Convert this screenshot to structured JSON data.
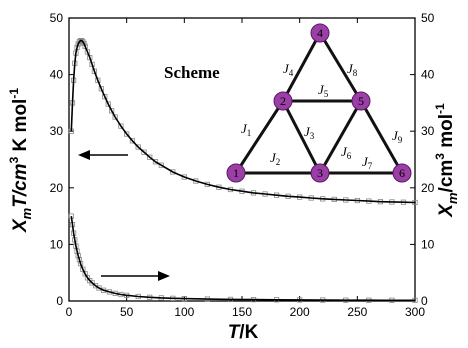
{
  "colors": {
    "node_fill": "#9b3fa6",
    "node_stroke": "#5a1a63",
    "fit_line": "#000000",
    "marker_stroke": "#888888"
  },
  "chart_data": {
    "type": "scatter",
    "x_axis": {
      "label_var": "T",
      "label_unit": "/K",
      "range": [
        0,
        300
      ],
      "ticks": [
        "0",
        "50",
        "100",
        "150",
        "200",
        "250",
        "300"
      ]
    },
    "y_axis_left": {
      "label_var": "X",
      "label_sub": "m",
      "label_rest": "T/cm",
      "label_sup": "3",
      "label_tail": " K mol",
      "label_sup2": "-1",
      "range": [
        0,
        50
      ],
      "ticks": [
        "0",
        "10",
        "20",
        "30",
        "40",
        "50"
      ]
    },
    "y_axis_right": {
      "label_var": "X",
      "label_sub": "m",
      "label_rest": "/cm",
      "label_sup": "3",
      "label_tail": " mol",
      "label_sup2": "-1",
      "range": [
        0,
        50
      ],
      "ticks": [
        "0",
        "10",
        "20",
        "30",
        "40",
        "50"
      ]
    },
    "series": [
      {
        "axis": "left",
        "points": [
          [
            2,
            30
          ],
          [
            3,
            35
          ],
          [
            4,
            39
          ],
          [
            5,
            42
          ],
          [
            6,
            43.8
          ],
          [
            7,
            44.8
          ],
          [
            8,
            45.4
          ],
          [
            9,
            45.8
          ],
          [
            10,
            46
          ],
          [
            11,
            46
          ],
          [
            12,
            45.8
          ],
          [
            13,
            45.5
          ],
          [
            14,
            45
          ],
          [
            16,
            44
          ],
          [
            18,
            43
          ],
          [
            20,
            41.8
          ],
          [
            22,
            40.6
          ],
          [
            25,
            39
          ],
          [
            28,
            37.5
          ],
          [
            31,
            36.1
          ],
          [
            34,
            34.8
          ],
          [
            37,
            33.6
          ],
          [
            40,
            32.5
          ],
          [
            45,
            30.9
          ],
          [
            50,
            29.5
          ],
          [
            55,
            28.3
          ],
          [
            60,
            27.2
          ],
          [
            65,
            26.3
          ],
          [
            70,
            25.4
          ],
          [
            75,
            24.6
          ],
          [
            80,
            24
          ],
          [
            90,
            22.8
          ],
          [
            100,
            21.9
          ],
          [
            110,
            21.2
          ],
          [
            120,
            20.6
          ],
          [
            130,
            20.1
          ],
          [
            140,
            19.7
          ],
          [
            150,
            19.4
          ],
          [
            160,
            19.1
          ],
          [
            170,
            18.9
          ],
          [
            180,
            18.7
          ],
          [
            190,
            18.5
          ],
          [
            200,
            18.35
          ],
          [
            210,
            18.2
          ],
          [
            220,
            18.05
          ],
          [
            230,
            17.95
          ],
          [
            240,
            17.85
          ],
          [
            250,
            17.75
          ],
          [
            260,
            17.65
          ],
          [
            270,
            17.55
          ],
          [
            280,
            17.5
          ],
          [
            290,
            17.45
          ],
          [
            300,
            17.4
          ]
        ]
      },
      {
        "axis": "right",
        "points": [
          [
            2,
            15
          ],
          [
            3,
            13.5
          ],
          [
            4,
            12
          ],
          [
            5,
            10.8
          ],
          [
            6,
            9.7
          ],
          [
            7,
            8.8
          ],
          [
            8,
            8
          ],
          [
            9,
            7.3
          ],
          [
            10,
            6.6
          ],
          [
            12,
            5.6
          ],
          [
            14,
            4.8
          ],
          [
            16,
            4.1
          ],
          [
            18,
            3.6
          ],
          [
            20,
            3.2
          ],
          [
            23,
            2.7
          ],
          [
            26,
            2.3
          ],
          [
            30,
            1.9
          ],
          [
            35,
            1.6
          ],
          [
            40,
            1.35
          ],
          [
            45,
            1.15
          ],
          [
            50,
            1
          ],
          [
            60,
            0.8
          ],
          [
            70,
            0.65
          ],
          [
            80,
            0.55
          ],
          [
            90,
            0.47
          ],
          [
            100,
            0.42
          ],
          [
            120,
            0.34
          ],
          [
            140,
            0.28
          ],
          [
            160,
            0.24
          ],
          [
            180,
            0.21
          ],
          [
            200,
            0.19
          ],
          [
            220,
            0.17
          ],
          [
            240,
            0.15
          ],
          [
            260,
            0.14
          ],
          [
            280,
            0.13
          ],
          [
            300,
            0.12
          ]
        ]
      }
    ]
  },
  "scheme": {
    "title": "Scheme",
    "nodes": [
      {
        "id": "1",
        "label": "1"
      },
      {
        "id": "2",
        "label": "2"
      },
      {
        "id": "3",
        "label": "3"
      },
      {
        "id": "4",
        "label": "4"
      },
      {
        "id": "5",
        "label": "5"
      },
      {
        "id": "6",
        "label": "6"
      }
    ],
    "couplings": [
      {
        "label": "J",
        "sub": "1"
      },
      {
        "label": "J",
        "sub": "2"
      },
      {
        "label": "J",
        "sub": "3"
      },
      {
        "label": "J",
        "sub": "4"
      },
      {
        "label": "J",
        "sub": "5"
      },
      {
        "label": "J",
        "sub": "6"
      },
      {
        "label": "J",
        "sub": "7"
      },
      {
        "label": "J",
        "sub": "8"
      },
      {
        "label": "J",
        "sub": "9"
      }
    ]
  }
}
